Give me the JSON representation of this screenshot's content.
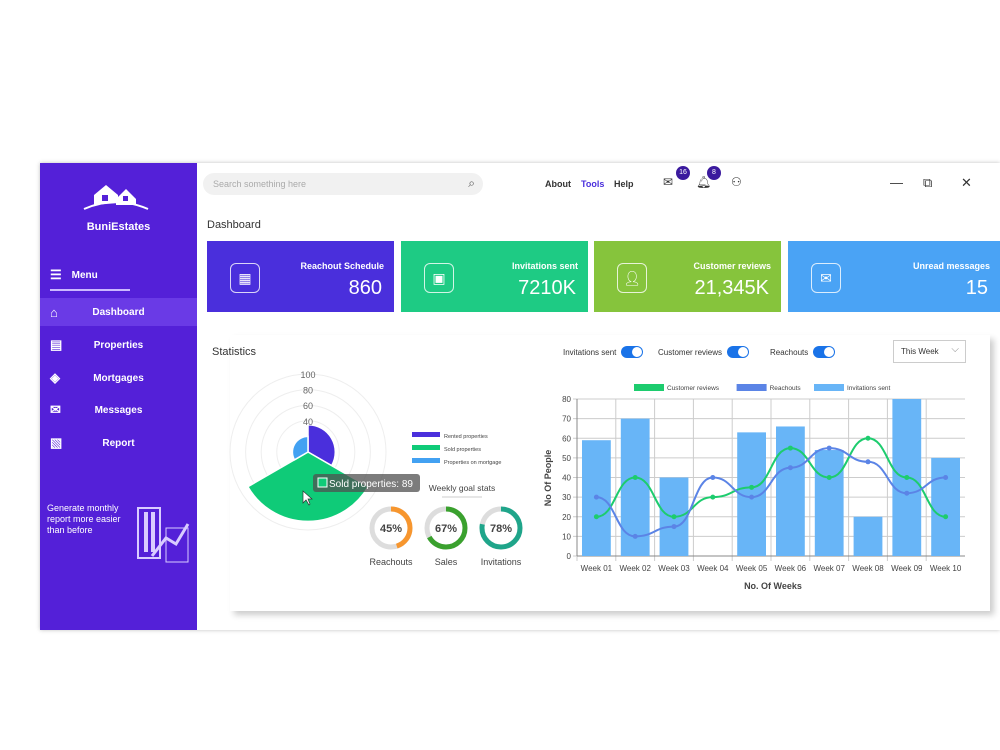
{
  "app": {
    "brand": "BuniEstates",
    "menu_label": "Menu"
  },
  "sidebar": {
    "items": [
      {
        "label": "Dashboard",
        "icon": "home-icon"
      },
      {
        "label": "Properties",
        "icon": "properties-icon"
      },
      {
        "label": "Mortgages",
        "icon": "mortgage-icon"
      },
      {
        "label": "Messages",
        "icon": "mail-icon"
      },
      {
        "label": "Report",
        "icon": "report-icon"
      }
    ],
    "promo": "Generate monthly report more easier than before"
  },
  "header": {
    "search_placeholder": "Search something here",
    "links": [
      "About",
      "Tools",
      "Help"
    ],
    "mail_badge": "16",
    "bell_badge": "8"
  },
  "page_title": "Dashboard",
  "cards": [
    {
      "label": "Reachout Schedule",
      "value": "860",
      "color": "#4a2fdc",
      "icon": "calendar-icon"
    },
    {
      "label": "Invitations sent",
      "value": "7210K",
      "color": "#1ecb84",
      "icon": "briefcase-icon"
    },
    {
      "label": "Customer reviews",
      "value": "21,345K",
      "color": "#86c43c",
      "icon": "user-icon"
    },
    {
      "label": "Unread messages",
      "value": "15",
      "color": "#4aa3f5",
      "icon": "envelope-icon"
    }
  ],
  "statistics": {
    "title": "Statistics",
    "toggles": [
      "Invitations sent",
      "Customer reviews",
      "Reachouts"
    ],
    "period": "This Week"
  },
  "goals": {
    "title": "Weekly goal stats",
    "items": [
      {
        "label": "Reachouts",
        "value": 45,
        "color": "#f7962e"
      },
      {
        "label": "Sales",
        "value": 67,
        "color": "#3aa12e"
      },
      {
        "label": "Invitations",
        "value": 78,
        "color": "#1fa58a"
      }
    ]
  },
  "chart_data": [
    {
      "type": "polar-area",
      "ticks": [
        100,
        80,
        60,
        40
      ],
      "rlim": [
        0,
        100
      ],
      "legend": "right",
      "tooltip": "Sold properties: 89",
      "series": [
        {
          "name": "Rented properties",
          "value": 35,
          "color": "#4a2fdc"
        },
        {
          "name": "Sold properties",
          "value": 89,
          "color": "#0fcb78"
        },
        {
          "name": "Properties on mortgage",
          "value": 20,
          "color": "#42a1f2"
        }
      ]
    },
    {
      "type": "bar+line",
      "categories": [
        "Week 01",
        "Week 02",
        "Week 03",
        "Week 04",
        "Week 05",
        "Week 06",
        "Week 07",
        "Week 08",
        "Week 09",
        "Week 10"
      ],
      "xlabel": "No. Of Weeks",
      "ylabel": "No Of People",
      "ylim": [
        0,
        80
      ],
      "yticks": [
        0,
        10,
        20,
        30,
        40,
        50,
        60,
        70,
        80
      ],
      "grid": true,
      "legend": "top",
      "series": [
        {
          "name": "Customer reviews",
          "type": "line",
          "color": "#1dcc6e",
          "values": [
            20,
            40,
            20,
            30,
            35,
            55,
            40,
            60,
            40,
            20
          ]
        },
        {
          "name": "Reachouts",
          "type": "line",
          "color": "#5b84e6",
          "values": [
            30,
            10,
            15,
            40,
            30,
            45,
            55,
            48,
            32,
            40
          ]
        },
        {
          "name": "Invitations sent",
          "type": "bar",
          "color": "#68b5f7",
          "values": [
            59,
            70,
            40,
            0,
            63,
            66,
            54,
            20,
            80,
            50
          ]
        }
      ]
    }
  ]
}
